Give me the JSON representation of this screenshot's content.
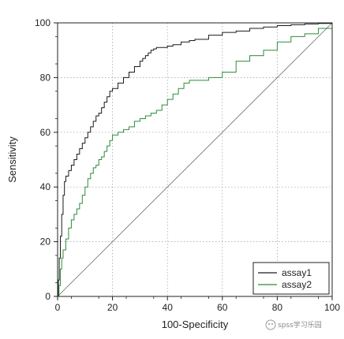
{
  "chart_data": {
    "type": "line",
    "title": "",
    "xlabel": "100-Specificity",
    "ylabel": "Sensitivity",
    "xlim": [
      0,
      100
    ],
    "ylim": [
      0,
      100
    ],
    "xticks": [
      0,
      20,
      40,
      60,
      80,
      100
    ],
    "yticks": [
      0,
      20,
      40,
      60,
      80,
      100
    ],
    "grid": true,
    "legend_position": "bottom-right",
    "diagonal_reference": true,
    "series": [
      {
        "name": "assay1",
        "color": "#1a1a1a",
        "x": [
          0,
          0.3,
          0.6,
          1,
          1.5,
          2,
          2.5,
          3,
          4,
          5,
          6,
          7,
          8,
          9,
          10,
          11,
          12,
          13,
          14,
          15,
          16,
          17,
          18,
          19,
          20,
          22,
          24,
          26,
          28,
          30,
          31,
          32,
          33,
          34,
          35,
          36,
          38,
          40,
          42,
          45,
          48,
          50,
          55,
          60,
          65,
          70,
          75,
          80,
          85,
          90,
          95,
          100
        ],
        "y": [
          0,
          6,
          14,
          22,
          30,
          37,
          42,
          44,
          46,
          48,
          50,
          52,
          54,
          56,
          58,
          60,
          62,
          64,
          66,
          67,
          69,
          71,
          73,
          75,
          76,
          78,
          80,
          82,
          84,
          86,
          87,
          88,
          89,
          90,
          90.5,
          91,
          91,
          91.5,
          92,
          93,
          93.5,
          94,
          95.5,
          96.5,
          97,
          98,
          98.5,
          99,
          99.3,
          99.6,
          99.8,
          100
        ]
      },
      {
        "name": "assay2",
        "color": "#2e8b3a",
        "x": [
          0,
          0.5,
          1,
          1.5,
          2,
          3,
          4,
          5,
          6,
          7,
          8,
          9,
          10,
          11,
          12,
          13,
          14,
          15,
          16,
          17,
          18,
          19,
          20,
          22,
          24,
          26,
          28,
          30,
          32,
          34,
          36,
          38,
          40,
          42,
          44,
          46,
          48,
          50,
          55,
          60,
          65,
          70,
          75,
          80,
          85,
          90,
          95,
          100
        ],
        "y": [
          0,
          4,
          10,
          14,
          17,
          21,
          25,
          28,
          30,
          32,
          34,
          37,
          40,
          43,
          45,
          47,
          48,
          50,
          51,
          53,
          55,
          57,
          59,
          60,
          61,
          62,
          64,
          65,
          66,
          67,
          68,
          70,
          72,
          74,
          76,
          78,
          79,
          79,
          80,
          82,
          86,
          88,
          90,
          93,
          95,
          96,
          98,
          100
        ]
      }
    ]
  },
  "watermark": {
    "text": "spss学习乐园"
  }
}
